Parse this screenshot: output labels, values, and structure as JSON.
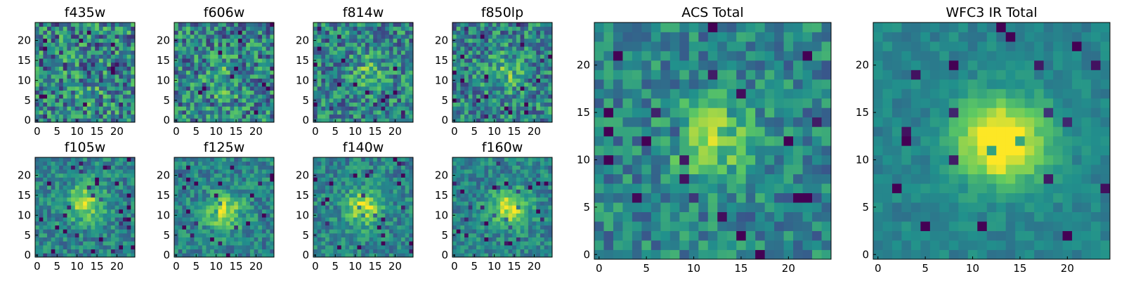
{
  "chart_data": [
    {
      "type": "heatmap",
      "title": "f435w",
      "grid_size": 25,
      "peak": [
        12,
        6
      ],
      "signal": 0.1,
      "noise": 0.55,
      "seed": 1,
      "xticks": [
        "0",
        "5",
        "10",
        "15",
        "20"
      ],
      "yticks": [
        "0",
        "5",
        "10",
        "15",
        "20"
      ]
    },
    {
      "type": "heatmap",
      "title": "f606w",
      "grid_size": 25,
      "peak": [
        12,
        10
      ],
      "signal": 0.18,
      "noise": 0.5,
      "seed": 2,
      "xticks": [
        "0",
        "5",
        "10",
        "15",
        "20"
      ],
      "yticks": [
        "0",
        "5",
        "10",
        "15",
        "20"
      ]
    },
    {
      "type": "heatmap",
      "title": "f814w",
      "grid_size": 25,
      "peak": [
        13,
        12
      ],
      "signal": 0.22,
      "noise": 0.45,
      "seed": 3,
      "xticks": [
        "0",
        "5",
        "10",
        "15",
        "20"
      ],
      "yticks": [
        "0",
        "5",
        "10",
        "15",
        "20"
      ]
    },
    {
      "type": "heatmap",
      "title": "f850lp",
      "grid_size": 25,
      "peak": [
        13,
        12
      ],
      "signal": 0.22,
      "noise": 0.45,
      "seed": 4,
      "xticks": [
        "0",
        "5",
        "10",
        "15",
        "20"
      ],
      "yticks": [
        "0",
        "5",
        "10",
        "15",
        "20"
      ]
    },
    {
      "type": "heatmap",
      "title": "f105w",
      "grid_size": 25,
      "peak": [
        12,
        13
      ],
      "signal": 0.45,
      "noise": 0.3,
      "seed": 5,
      "xticks": [
        "0",
        "5",
        "10",
        "15",
        "20"
      ],
      "yticks": [
        "0",
        "5",
        "10",
        "15",
        "20"
      ]
    },
    {
      "type": "heatmap",
      "title": "f125w",
      "grid_size": 25,
      "peak": [
        12,
        11
      ],
      "signal": 0.45,
      "noise": 0.3,
      "seed": 6,
      "xticks": [
        "0",
        "5",
        "10",
        "15",
        "20"
      ],
      "yticks": [
        "0",
        "5",
        "10",
        "15",
        "20"
      ]
    },
    {
      "type": "heatmap",
      "title": "f140w",
      "grid_size": 25,
      "peak": [
        12,
        12
      ],
      "signal": 0.45,
      "noise": 0.3,
      "seed": 7,
      "xticks": [
        "0",
        "5",
        "10",
        "15",
        "20"
      ],
      "yticks": [
        "0",
        "5",
        "10",
        "15",
        "20"
      ]
    },
    {
      "type": "heatmap",
      "title": "f160w",
      "grid_size": 25,
      "peak": [
        14,
        12
      ],
      "signal": 0.5,
      "noise": 0.28,
      "seed": 8,
      "xticks": [
        "0",
        "5",
        "10",
        "15",
        "20"
      ],
      "yticks": [
        "0",
        "5",
        "10",
        "15",
        "20"
      ]
    },
    {
      "type": "heatmap",
      "title": "ACS Total",
      "grid_size": 25,
      "peak": [
        12,
        12
      ],
      "signal": 0.35,
      "noise": 0.32,
      "seed": 9,
      "xticks": [
        "0",
        "5",
        "10",
        "15",
        "20"
      ],
      "yticks": [
        "0",
        "5",
        "10",
        "15",
        "20"
      ]
    },
    {
      "type": "heatmap",
      "title": "WFC3 IR Total",
      "grid_size": 25,
      "peak": [
        13,
        12
      ],
      "signal": 0.7,
      "noise": 0.14,
      "seed": 10,
      "xticks": [
        "0",
        "5",
        "10",
        "15",
        "20"
      ],
      "yticks": [
        "0",
        "5",
        "10",
        "15",
        "20"
      ]
    }
  ],
  "colormap": [
    "#440154",
    "#3b528b",
    "#21918c",
    "#5ec962",
    "#fde725"
  ]
}
